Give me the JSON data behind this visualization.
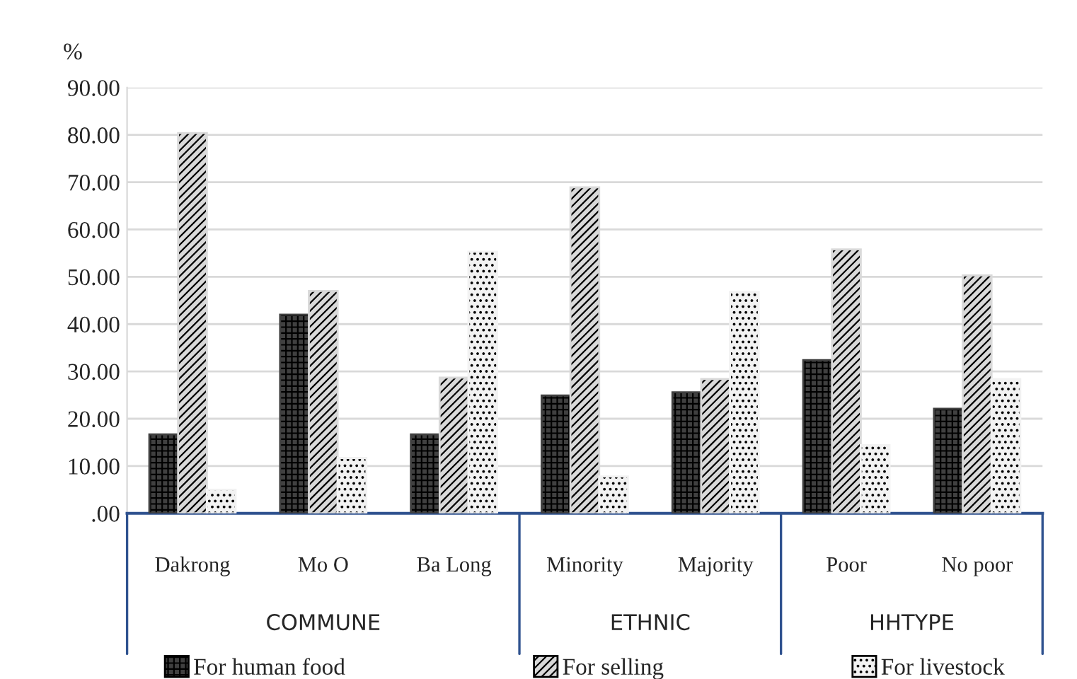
{
  "chart_data": {
    "type": "bar",
    "ylabel": "%",
    "categories": [
      "Dakrong",
      "Mo O",
      "Ba Long",
      "Minority",
      "Majority",
      "Poor",
      "No poor"
    ],
    "series": [
      {
        "name": "For human food",
        "color": "#404040",
        "values": [
          16.7,
          42.0,
          16.7,
          24.9,
          25.6,
          32.4,
          22.1
        ]
      },
      {
        "name": "For selling",
        "color": "#d9d9d9",
        "values": [
          80.4,
          47.0,
          28.7,
          68.9,
          28.4,
          55.8,
          50.3
        ]
      },
      {
        "name": "For livestock",
        "color": "#f2f2f2",
        "values": [
          5.0,
          11.7,
          55.3,
          7.8,
          46.8,
          14.4,
          28.4
        ]
      }
    ],
    "annotations": [
      "COMMUNE",
      "ETHNIC",
      "HHTYPE"
    ],
    "ylim": [
      0,
      90
    ],
    "yticks": [
      {
        "value": 0,
        "label": ".00"
      },
      {
        "value": 10,
        "label": "10.00"
      },
      {
        "value": 20,
        "label": "20.00"
      },
      {
        "value": 30,
        "label": "30.00"
      },
      {
        "value": 40,
        "label": "40.00"
      },
      {
        "value": 50,
        "label": "50.00"
      },
      {
        "value": 60,
        "label": "60.00"
      },
      {
        "value": 70,
        "label": "70.00"
      },
      {
        "value": 80,
        "label": "80.00"
      },
      {
        "value": 90,
        "label": "90.00"
      }
    ],
    "grid": "y",
    "legend": "bottom"
  }
}
